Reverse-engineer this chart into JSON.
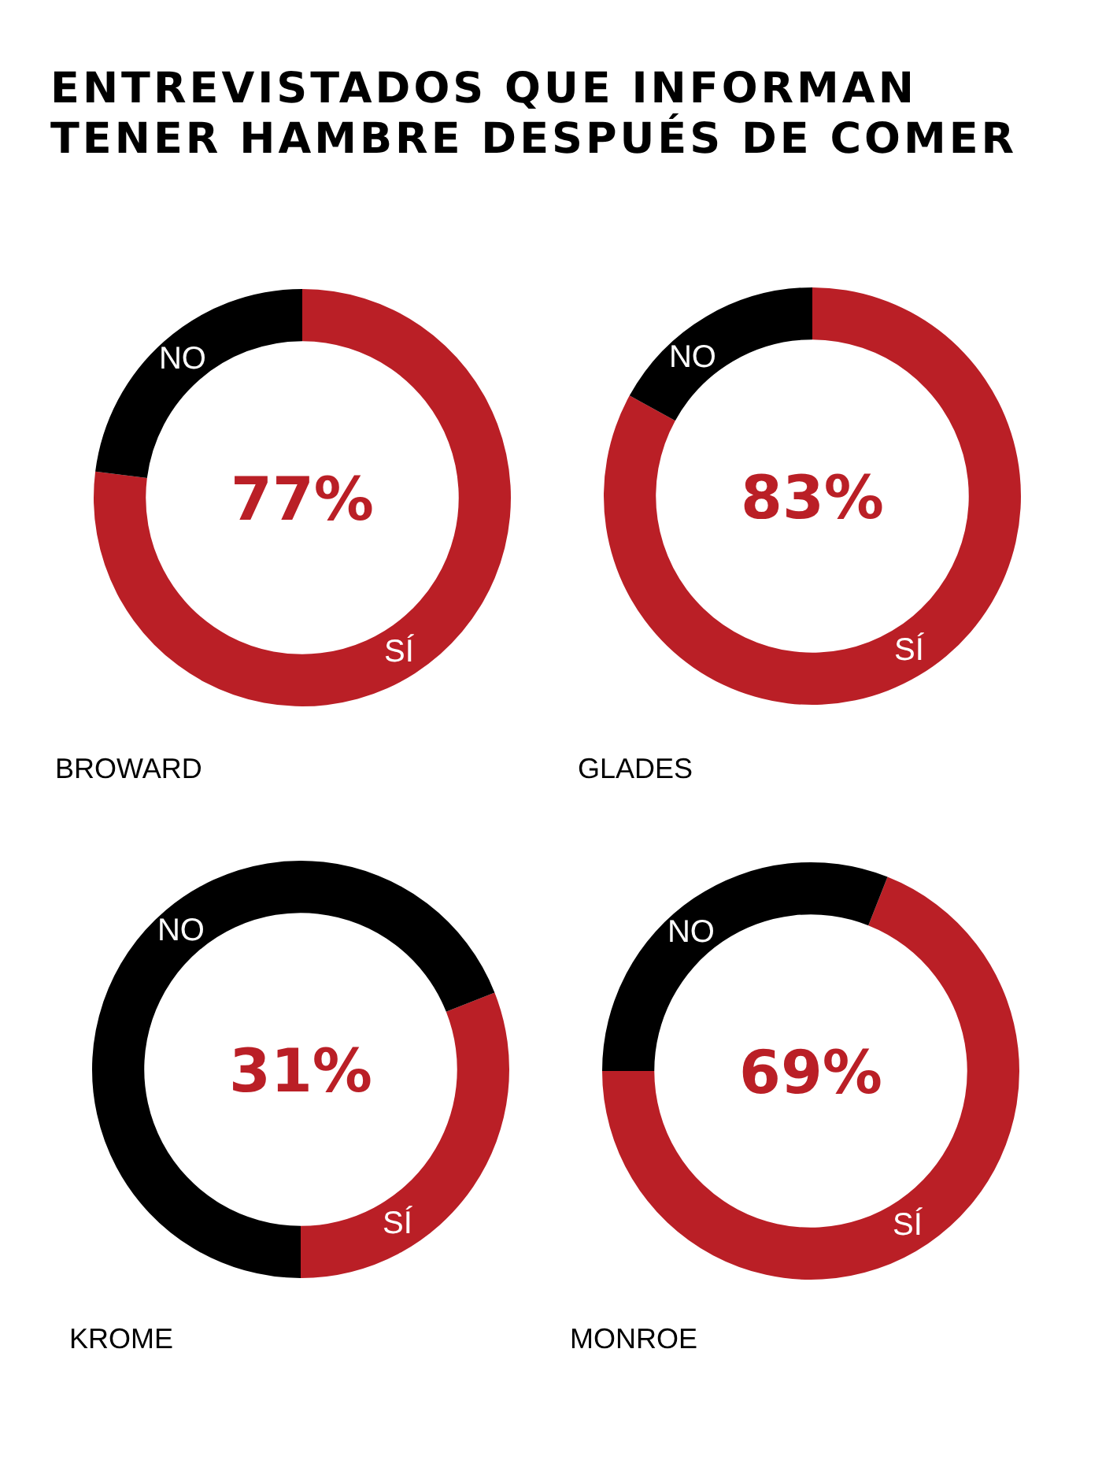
{
  "chart_data": [
    {
      "type": "other",
      "title": "ENTREVISTADOS QUE INFORMAN TENER HAMBRE DESPUÉS DE COMER"
    },
    {
      "type": "donut",
      "title": "BROWARD",
      "categories": [
        "SÍ",
        "NO"
      ],
      "values": [
        77,
        23
      ],
      "colors": [
        "#ba1f26",
        "#000000"
      ],
      "value_labels": [
        "77%",
        null
      ]
    },
    {
      "type": "donut",
      "title": "GLADES",
      "categories": [
        "SÍ",
        "NO"
      ],
      "values": [
        83,
        17
      ],
      "colors": [
        "#ba1f26",
        "#000000"
      ],
      "value_labels": [
        "83%",
        null
      ]
    },
    {
      "type": "donut",
      "title": "KROME",
      "categories": [
        "SÍ",
        "NO"
      ],
      "values": [
        31,
        69
      ],
      "colors": [
        "#ba1f26",
        "#000000"
      ],
      "value_labels": [
        "31%",
        null
      ]
    },
    {
      "type": "donut",
      "title": "MONROE",
      "categories": [
        "SÍ",
        "NO"
      ],
      "values": [
        69,
        31
      ],
      "colors": [
        "#ba1f26",
        "#000000"
      ],
      "value_labels": [
        "69%",
        null
      ]
    }
  ]
}
